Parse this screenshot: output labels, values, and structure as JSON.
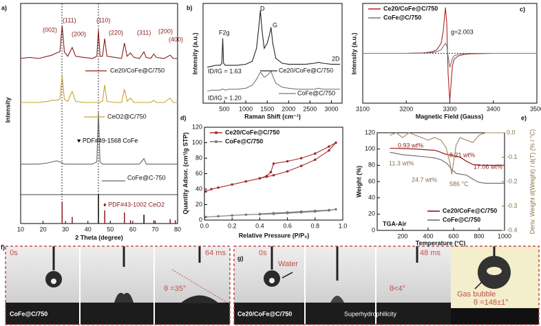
{
  "chart_data": [
    {
      "type": "line",
      "title": "a)",
      "xlabel": "2 Theta (degree)",
      "ylabel": "Intensity",
      "xlim": [
        10,
        80
      ],
      "xticks": [
        10,
        20,
        30,
        40,
        50,
        60,
        70,
        80
      ],
      "ylim": [
        0,
        100
      ],
      "legend": "inline",
      "series": [
        {
          "name": "Ce20/CoFe@C/750",
          "color": "#8b1a1a",
          "x": [
            10,
            14,
            18,
            22,
            24,
            26,
            27.5,
            28.5,
            29.5,
            31,
            33,
            34.5,
            38,
            42,
            44,
            44.7,
            45.4,
            46.5,
            47.5,
            48.5,
            52,
            55,
            56.3,
            57.5,
            59,
            60.5,
            63,
            65,
            66,
            68,
            69.4,
            70.5,
            74,
            76.7,
            78,
            80
          ],
          "values": [
            75,
            75.5,
            75,
            76,
            76.5,
            77.5,
            78,
            90,
            78,
            76,
            80,
            76,
            75.5,
            75,
            76,
            88,
            76,
            76,
            84,
            76,
            75.5,
            75,
            82,
            76,
            77.5,
            75.5,
            75,
            78,
            75.5,
            75,
            77,
            75.5,
            75,
            76.5,
            75,
            75
          ]
        },
        {
          "name": "CeO2@C/750",
          "color": "#c8a032",
          "x": [
            10,
            14,
            18,
            22,
            24,
            26,
            27.5,
            28.5,
            29.5,
            31,
            33,
            34.5,
            38,
            42,
            44,
            44.7,
            45.4,
            46.5,
            47.5,
            48.5,
            52,
            55,
            56.3,
            57.5,
            59,
            60.5,
            63,
            65,
            66,
            68,
            69.4,
            70.5,
            74,
            76.7,
            78,
            80
          ],
          "values": [
            55,
            55,
            55,
            55.5,
            56,
            56,
            56.5,
            67,
            56.5,
            55.5,
            60,
            55.5,
            55,
            55,
            55,
            55,
            55,
            55.5,
            63,
            55.5,
            55,
            55,
            61,
            55.5,
            57,
            55,
            55,
            55,
            55,
            55,
            56,
            55,
            55,
            57,
            55,
            55
          ]
        },
        {
          "name": "CoFe@C-750",
          "color": "#666666",
          "x": [
            10,
            14,
            18,
            22,
            24,
            26,
            27.5,
            28.5,
            29.5,
            31,
            33,
            34.5,
            38,
            42,
            44,
            44.7,
            45.4,
            46.5,
            47.5,
            48.5,
            52,
            55,
            56.3,
            57.5,
            59,
            60.5,
            63,
            65,
            66,
            68,
            69.4,
            70.5,
            74,
            76.7,
            78,
            80
          ],
          "values": [
            27,
            27,
            27,
            27.5,
            28,
            28.5,
            28,
            27.5,
            27,
            27,
            27,
            27,
            27,
            27,
            28,
            51,
            28,
            27,
            27,
            27,
            27,
            27,
            27,
            27,
            27,
            27,
            27,
            29.5,
            27,
            27,
            27,
            27,
            27,
            27,
            27,
            27
          ]
        },
        {
          "name": "♥ PDF#49-1568 CoFe",
          "color": "#000000",
          "kind": "stick",
          "x": [
            44.7,
            65
          ],
          "values": [
            13,
            4
          ]
        },
        {
          "name": "♦ PDF#43-1002 CeO2",
          "color": "#8b1a1a",
          "kind": "stick",
          "x": [
            28.5,
            33,
            47.5,
            56.3,
            59,
            69.4,
            76.7,
            79
          ],
          "values": [
            10,
            3,
            6,
            5,
            1.5,
            1.5,
            2,
            1.5
          ]
        }
      ],
      "annotations": [
        "(002)",
        "(111)",
        "(200)",
        "(110)",
        "(220)",
        "(311)",
        "(200)",
        "(400)"
      ]
    },
    {
      "type": "line",
      "title": "b)",
      "xlabel": "Raman Shift (cm⁻¹)",
      "ylabel": "Intensity (a.u.)",
      "xlim": [
        0,
        3250
      ],
      "xticks": [
        500,
        1000,
        1500,
        2000,
        2500,
        3000
      ],
      "ylim": [
        0,
        100
      ],
      "legend": "inline",
      "series": [
        {
          "name": "Ce20/CoFe@C/750",
          "color": "#222222",
          "x": [
            100,
            200,
            300,
            400,
            440,
            460,
            480,
            520,
            600,
            800,
            1000,
            1150,
            1250,
            1300,
            1340,
            1380,
            1430,
            1500,
            1550,
            1590,
            1630,
            1700,
            1850,
            2000,
            2200,
            2400,
            2600,
            2700,
            2800,
            3000,
            3200
          ],
          "values": [
            36,
            37,
            38,
            38,
            40,
            65,
            40,
            38,
            38,
            38,
            39,
            42,
            55,
            75,
            93,
            72,
            55,
            60,
            68,
            76,
            60,
            45,
            40,
            39,
            39,
            39,
            40,
            41,
            40,
            39,
            39
          ]
        },
        {
          "name": "CoFe@C/750",
          "color": "#777777",
          "x": [
            100,
            200,
            300,
            400,
            440,
            460,
            480,
            520,
            600,
            800,
            1000,
            1150,
            1250,
            1300,
            1340,
            1380,
            1430,
            1500,
            1550,
            1590,
            1630,
            1700,
            1850,
            2000,
            2200,
            2400,
            2600,
            2700,
            2800,
            3000,
            3200
          ],
          "values": [
            12,
            13,
            13,
            13,
            14,
            14,
            14,
            13,
            14,
            14,
            15,
            18,
            24,
            28,
            31,
            29,
            26,
            28,
            30,
            32,
            27,
            20,
            16,
            15,
            14,
            14,
            14,
            15,
            14,
            14,
            14
          ]
        }
      ],
      "annotations": [
        "F2g",
        "D",
        "G",
        "2D",
        "ID/IG = 1.63",
        "ID/IG = 1.20"
      ]
    },
    {
      "type": "line",
      "title": "c)",
      "xlabel": "Magnetic Field (Gauss)",
      "ylabel": "Intensity (a.u.)",
      "xlim": [
        3100,
        3500
      ],
      "xticks": [
        3100,
        3200,
        3300,
        3400,
        3500
      ],
      "ylim": [
        -100,
        100
      ],
      "legend": "upper-left",
      "series": [
        {
          "name": "Ce20/CoFe@C/750",
          "color": "#b22222",
          "x": [
            3100,
            3150,
            3200,
            3240,
            3260,
            3270,
            3280,
            3285,
            3290,
            3293,
            3296,
            3300,
            3303,
            3306,
            3310,
            3320,
            3335,
            3350,
            3400,
            3450,
            3500
          ],
          "values": [
            0,
            0,
            0,
            1,
            3,
            7,
            20,
            45,
            92,
            60,
            -40,
            -96,
            -60,
            -25,
            -12,
            -5,
            -2,
            -1,
            0,
            0,
            0
          ]
        },
        {
          "name": "CoFe@C/750",
          "color": "#777777",
          "x": [
            3100,
            3150,
            3200,
            3240,
            3260,
            3270,
            3280,
            3285,
            3290,
            3293,
            3296,
            3300,
            3303,
            3306,
            3310,
            3320,
            3335,
            3350,
            3400,
            3450,
            3500
          ],
          "values": [
            0,
            0,
            0,
            0.5,
            1.5,
            3,
            7,
            14,
            20,
            15,
            -5,
            -28,
            -20,
            -10,
            -5,
            -2,
            -1,
            0,
            0,
            0,
            0
          ]
        }
      ],
      "annotations": [
        "g=2.003"
      ]
    },
    {
      "type": "line",
      "title": "d)",
      "xlabel": "Relative Pressure (P/P₀)",
      "ylabel": "Quantity Adsor. (cm³/g STP)",
      "xlim": [
        0,
        1
      ],
      "xticks": [
        {
          "value": 0,
          "label": "0.0"
        },
        0.2,
        0.4,
        0.6,
        0.8,
        {
          "value": 1,
          "label": "1.0"
        }
      ],
      "ylim": [
        0,
        120
      ],
      "yticks": [
        0,
        20,
        40,
        60,
        80,
        100,
        120
      ],
      "legend": "upper-left",
      "series": [
        {
          "name": "Ce20/CoFe@C/750",
          "color": "#a52a2a",
          "marker": true,
          "x": [
            0.01,
            0.05,
            0.1,
            0.2,
            0.3,
            0.4,
            0.45,
            0.5,
            0.6,
            0.7,
            0.8,
            0.9,
            0.95,
            0.9,
            0.8,
            0.7,
            0.6,
            0.5,
            0.48,
            0.45,
            0.4
          ],
          "values": [
            37,
            40,
            42,
            46,
            50,
            54,
            56,
            58,
            63,
            70,
            78,
            90,
            100,
            95,
            86,
            80,
            76,
            73,
            62,
            57,
            54
          ]
        },
        {
          "name": "CoFe@C/750",
          "color": "#777777",
          "marker": true,
          "x": [
            0.01,
            0.1,
            0.2,
            0.3,
            0.4,
            0.5,
            0.6,
            0.7,
            0.8,
            0.9,
            0.95,
            0.9,
            0.8,
            0.7,
            0.6,
            0.5,
            0.4
          ],
          "values": [
            4,
            5,
            6,
            7,
            7.5,
            8,
            9,
            10,
            11,
            12.5,
            14,
            13,
            12,
            11,
            10,
            9,
            8
          ]
        }
      ]
    },
    {
      "type": "line",
      "title": "e)",
      "xlabel": "Temperature (°C)",
      "ylabel": "Weight (%)",
      "y2label": "Deriv. Weight d(Weight) / d(T) (% / °C)",
      "xlim": [
        0,
        1000
      ],
      "xticks": [
        200,
        400,
        600,
        800,
        1000
      ],
      "ylim": [
        0,
        120
      ],
      "yticks": [
        0,
        20,
        40,
        60,
        80,
        100,
        120
      ],
      "y2lim": [
        -0.4,
        0
      ],
      "y2ticks": [
        -0.4,
        -0.3,
        -0.2,
        -0.1,
        {
          "value": 0,
          "label": "0.0"
        }
      ],
      "legend": "lower-right",
      "series": [
        {
          "name": "Ce20/CoFe@C/750",
          "color": "#8b0000",
          "x": [
            100,
            200,
            300,
            400,
            450,
            500,
            530,
            560,
            600,
            650,
            700,
            750,
            800,
            900,
            1000
          ],
          "values": [
            101,
            100.5,
            100,
            99,
            98.5,
            96,
            94,
            93,
            92,
            90,
            85,
            81,
            80,
            80,
            80
          ]
        },
        {
          "name": "CoFe@C/750",
          "color": "#666666",
          "x": [
            100,
            200,
            300,
            400,
            450,
            500,
            550,
            586,
            620,
            700,
            750,
            800,
            850,
            1000
          ],
          "values": [
            96,
            93,
            91.5,
            90,
            89,
            87,
            82,
            75,
            70,
            68,
            63,
            59,
            58,
            58
          ]
        },
        {
          "color": "#a0845c",
          "axis": "y2",
          "x": [
            100,
            150,
            200,
            250,
            300,
            350,
            400,
            450,
            500,
            540,
            570,
            586,
            600,
            620,
            650,
            700,
            750,
            800,
            850,
            900,
            1000
          ],
          "values": [
            -0.01,
            0,
            -0.02,
            0,
            -0.01,
            -0.02,
            -0.03,
            -0.02,
            -0.03,
            -0.06,
            -0.12,
            -0.17,
            -0.12,
            -0.05,
            -0.02,
            -0.03,
            -0.04,
            -0.01,
            0,
            0,
            0
          ]
        }
      ],
      "annotations": [
        "0.93 wt%",
        "8.21 wt%",
        "17.06 wt%",
        "11.3 wt%",
        "24.7 wt%",
        "586 °C",
        "TGA-Air"
      ]
    }
  ],
  "photos": {
    "f": {
      "label": "f)",
      "start": "0s",
      "end": "64 ms",
      "angle": "θ =35°",
      "sample": "CoFe@C/750"
    },
    "g": {
      "label": "g)",
      "start": "0s",
      "water": "Water",
      "end": "48 ms",
      "angle": "θ<4°",
      "bubble": "Gas bubble",
      "bubble_angle": "θ =148±1°",
      "sample": "Ce20/CoFe@C/750",
      "note": "Superhydrophilicity"
    }
  }
}
